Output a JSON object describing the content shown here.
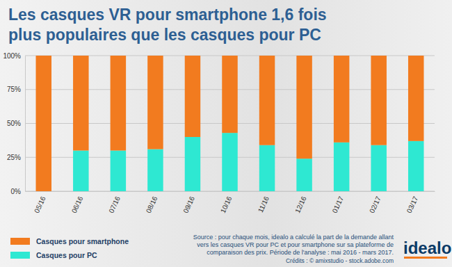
{
  "chart_data": {
    "type": "bar",
    "stacked": true,
    "title": [
      "Les casques VR pour smartphone 1,6 fois",
      "plus populaires que les casques pour PC"
    ],
    "categories": [
      "05/16",
      "06/16",
      "07/16",
      "08/16",
      "09/16",
      "10/16",
      "11/16",
      "12/16",
      "01/17",
      "02/17",
      "03/17"
    ],
    "series": [
      {
        "name": "Casques pour smartphone",
        "color": "#f27b1f",
        "values": [
          100,
          70,
          70,
          69,
          60,
          57,
          66,
          76,
          64,
          66,
          63
        ]
      },
      {
        "name": "Casques pour PC",
        "color": "#2ee8d2",
        "values": [
          0,
          30,
          30,
          31,
          40,
          43,
          34,
          24,
          36,
          34,
          37
        ]
      }
    ],
    "ylim": [
      0,
      100
    ],
    "yticks": [
      {
        "value": 0,
        "label": "0%"
      },
      {
        "value": 25,
        "label": "25%"
      },
      {
        "value": 50,
        "label": "50%"
      },
      {
        "value": 75,
        "label": "75%"
      },
      {
        "value": 100,
        "label": "100%"
      }
    ],
    "grid": true,
    "legend": "bottom-left",
    "source": [
      "Source : pour chaque mois, idealo a calculé la part de la demande allant",
      "vers les casques VR pour PC et pour smartphone sur sa plateforme de",
      "comparaison des prix. Période de l'analyse : mai 2016 - mars 2017."
    ],
    "credits": "Crédits : © amixstudio - stock.adobe.com",
    "logo": "idealo"
  }
}
